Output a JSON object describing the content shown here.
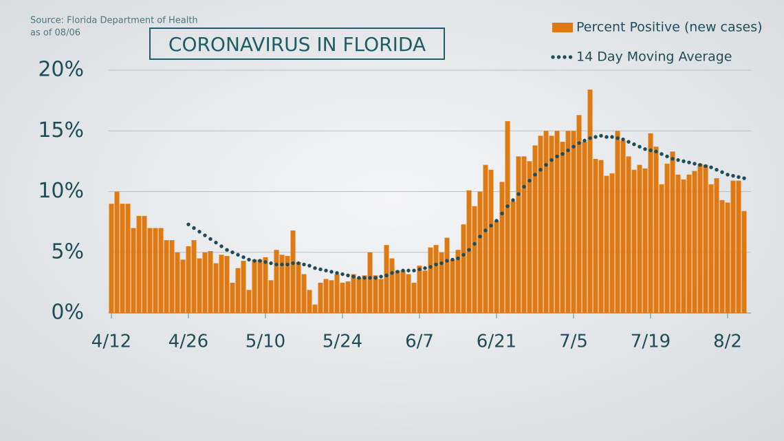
{
  "chart_data": {
    "type": "bar",
    "source": "Source: Florida Department of Health",
    "date_note": "as of 08/06",
    "title": "CORONAVIRUS IN FLORIDA",
    "categories": [
      "4/12",
      null,
      null,
      null,
      null,
      null,
      null,
      null,
      null,
      null,
      null,
      null,
      null,
      null,
      "4/26",
      null,
      null,
      null,
      null,
      null,
      null,
      null,
      null,
      null,
      null,
      null,
      null,
      null,
      "5/10",
      null,
      null,
      null,
      null,
      null,
      null,
      null,
      null,
      null,
      null,
      null,
      null,
      null,
      "5/24",
      null,
      null,
      null,
      null,
      null,
      null,
      null,
      null,
      null,
      null,
      null,
      null,
      null,
      "6/7",
      null,
      null,
      null,
      null,
      null,
      null,
      null,
      null,
      null,
      null,
      null,
      null,
      null,
      "6/21",
      null,
      null,
      null,
      null,
      null,
      null,
      null,
      null,
      null,
      null,
      null,
      null,
      null,
      "7/5",
      null,
      null,
      null,
      null,
      null,
      null,
      null,
      null,
      null,
      null,
      null,
      null,
      null,
      "7/19",
      null,
      null,
      null,
      null,
      null,
      null,
      null,
      null,
      null,
      null,
      null,
      null,
      null,
      "8/2",
      null,
      null,
      null
    ],
    "series": [
      {
        "name": "Percent Positive (new cases)",
        "type": "bar",
        "color": "#df7a12",
        "values": [
          9.0,
          10.0,
          9.0,
          9.0,
          7.0,
          8.0,
          8.0,
          7.0,
          7.0,
          7.0,
          6.0,
          6.0,
          5.0,
          4.4,
          5.5,
          6.0,
          4.5,
          5.0,
          5.1,
          4.1,
          4.8,
          4.7,
          2.5,
          3.7,
          4.3,
          1.9,
          4.4,
          4.4,
          4.6,
          2.7,
          5.2,
          4.8,
          4.7,
          6.8,
          4.2,
          3.2,
          1.9,
          0.7,
          2.5,
          2.8,
          2.7,
          3.2,
          2.5,
          2.6,
          3.2,
          2.9,
          3.1,
          5.0,
          3.1,
          2.8,
          5.6,
          4.5,
          3.5,
          3.5,
          3.2,
          2.5,
          3.9,
          3.5,
          5.4,
          5.6,
          5.0,
          6.2,
          4.4,
          5.2,
          7.3,
          10.1,
          8.8,
          10.0,
          12.2,
          11.8,
          7.6,
          10.8,
          15.8,
          9.2,
          12.9,
          12.9,
          12.5,
          13.8,
          14.6,
          15.0,
          14.6,
          15.0,
          14.1,
          15.0,
          15.0,
          16.3,
          14.1,
          18.4,
          12.7,
          12.6,
          11.3,
          11.5,
          15.0,
          14.2,
          12.9,
          11.8,
          12.2,
          11.9,
          14.8,
          13.7,
          10.6,
          12.3,
          13.3,
          11.4,
          11.0,
          11.4,
          11.7,
          12.3,
          12.2,
          10.6,
          11.1,
          9.3,
          9.1,
          10.9,
          10.9,
          8.4
        ]
      },
      {
        "name": "14 Day Moving Average",
        "type": "line",
        "color": "#1d4d5a",
        "values": [
          null,
          null,
          null,
          null,
          null,
          null,
          null,
          null,
          null,
          null,
          null,
          null,
          null,
          null,
          7.3,
          7.0,
          6.7,
          6.4,
          6.1,
          5.8,
          5.5,
          5.2,
          5.0,
          4.8,
          4.6,
          4.4,
          4.3,
          4.3,
          4.2,
          4.1,
          4.0,
          4.0,
          4.0,
          4.1,
          4.1,
          4.0,
          3.9,
          3.7,
          3.6,
          3.5,
          3.4,
          3.3,
          3.2,
          3.1,
          3.0,
          2.9,
          2.9,
          2.9,
          2.9,
          3.0,
          3.1,
          3.3,
          3.4,
          3.5,
          3.5,
          3.5,
          3.6,
          3.7,
          3.8,
          4.0,
          4.1,
          4.3,
          4.4,
          4.5,
          4.8,
          5.2,
          5.7,
          6.3,
          6.8,
          7.2,
          7.6,
          8.2,
          8.8,
          9.3,
          9.8,
          10.4,
          10.9,
          11.4,
          11.8,
          12.2,
          12.6,
          12.9,
          13.1,
          13.4,
          13.7,
          14.0,
          14.2,
          14.4,
          14.5,
          14.6,
          14.5,
          14.5,
          14.4,
          14.3,
          14.1,
          13.9,
          13.7,
          13.5,
          13.4,
          13.3,
          13.1,
          12.9,
          12.7,
          12.6,
          12.5,
          12.4,
          12.3,
          12.2,
          12.1,
          12.0,
          11.8,
          11.6,
          11.4,
          11.3,
          11.2,
          11.1
        ]
      }
    ],
    "ylim": [
      0,
      20
    ],
    "yticks": [
      {
        "value": 0,
        "label": "0%"
      },
      {
        "value": 5,
        "label": "5%"
      },
      {
        "value": 10,
        "label": "10%"
      },
      {
        "value": 15,
        "label": "15%"
      },
      {
        "value": 20,
        "label": "20%"
      }
    ],
    "grid": true
  }
}
